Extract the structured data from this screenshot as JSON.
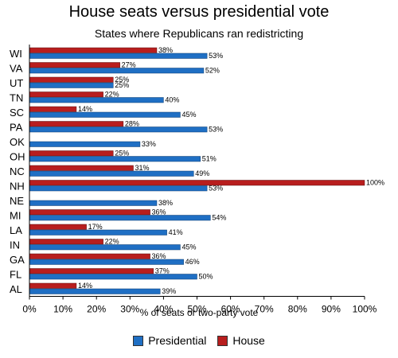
{
  "chart_data": {
    "type": "bar",
    "orientation": "horizontal",
    "title": "House seats versus presidential vote",
    "subtitle": "States where Republicans ran redistricting",
    "xlabel": "% of seats or two-party vote",
    "ylabel": "",
    "xlim": [
      0,
      100
    ],
    "x_ticks": [
      "0%",
      "10%",
      "20%",
      "30%",
      "40%",
      "50%",
      "60%",
      "70%",
      "80%",
      "90%",
      "100%"
    ],
    "grid": false,
    "legend_position": "bottom",
    "categories": [
      "WI",
      "VA",
      "UT",
      "TN",
      "SC",
      "PA",
      "OK",
      "OH",
      "NC",
      "NH",
      "NE",
      "MI",
      "LA",
      "IN",
      "GA",
      "FL",
      "AL"
    ],
    "series": [
      {
        "name": "House",
        "color": "#b81e1e",
        "values": [
          38,
          27,
          25,
          22,
          14,
          28,
          0,
          25,
          31,
          100,
          0,
          36,
          17,
          22,
          36,
          37,
          14
        ]
      },
      {
        "name": "Presidential",
        "color": "#1f6fc4",
        "values": [
          53,
          52,
          25,
          40,
          45,
          53,
          33,
          51,
          49,
          53,
          38,
          54,
          41,
          45,
          46,
          50,
          39
        ]
      }
    ],
    "data_labels": {
      "House": [
        "38%",
        "27%",
        "25%",
        "22%",
        "14%",
        "28%",
        "",
        "25%",
        "31%",
        "100%",
        "",
        "36%",
        "17%",
        "22%",
        "36%",
        "37%",
        "14%"
      ],
      "Presidential": [
        "53%",
        "52%",
        "25%",
        "40%",
        "45%",
        "53%",
        "33%",
        "51%",
        "49%",
        "53%",
        "38%",
        "54%",
        "41%",
        "45%",
        "46%",
        "50%",
        "39%"
      ]
    }
  },
  "legend": {
    "items": [
      "Presidential",
      "House"
    ]
  }
}
